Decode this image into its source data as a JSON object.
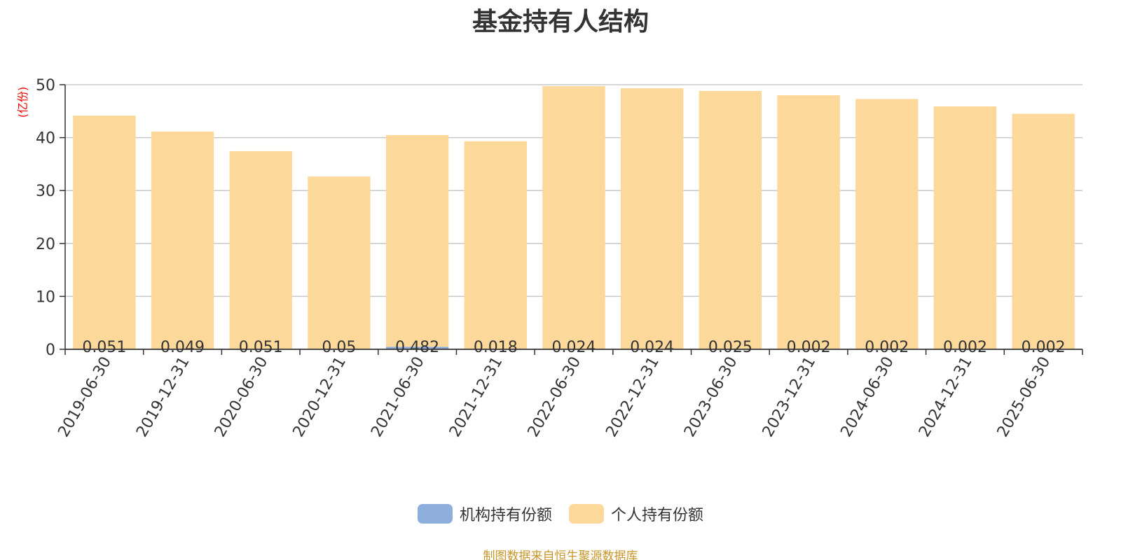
{
  "chart_data": {
    "type": "bar",
    "stacked": true,
    "title": "基金持有人结构",
    "ylabel": "(亿份)",
    "xlabel": "",
    "ylim": [
      0,
      50
    ],
    "yticks": [
      0,
      10,
      20,
      30,
      40,
      50
    ],
    "grid": true,
    "legend_position": "bottom",
    "categories": [
      "2019-06-30",
      "2019-12-31",
      "2020-06-30",
      "2020-12-31",
      "2021-06-30",
      "2021-12-31",
      "2022-06-30",
      "2022-12-31",
      "2023-06-30",
      "2023-12-31",
      "2024-06-30",
      "2024-12-31",
      "2025-06-30"
    ],
    "series": [
      {
        "name": "机构持有份额",
        "color": "#8eaedc",
        "values": [
          0.051,
          0.049,
          0.051,
          0.05,
          0.482,
          0.018,
          0.024,
          0.024,
          0.025,
          0.002,
          0.002,
          0.002,
          0.002
        ],
        "labels": [
          "0.051",
          "0.049",
          "0.051",
          "0.05",
          "0.482",
          "0.018",
          "0.024",
          "0.024",
          "0.025",
          "0.002",
          "0.002",
          "0.002",
          "0.002"
        ]
      },
      {
        "name": "个人持有份额",
        "color": "#fdd89b",
        "values": [
          44.1,
          41.1,
          37.4,
          32.6,
          40.0,
          39.3,
          49.7,
          49.3,
          48.8,
          48.0,
          47.3,
          45.9,
          44.5
        ]
      }
    ]
  },
  "source_note": "制图数据来自恒生聚源数据库"
}
